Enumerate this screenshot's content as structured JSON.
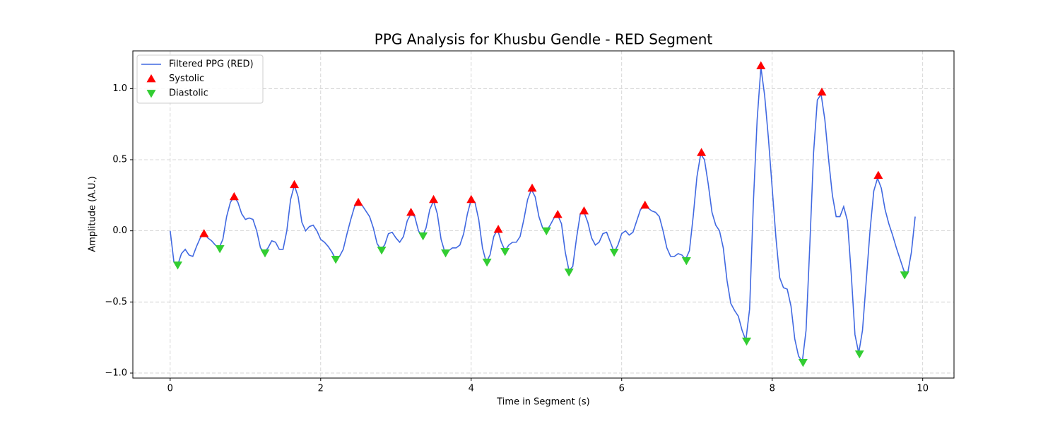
{
  "chart_data": {
    "type": "line",
    "title": "PPG Analysis for Khusbu Gendle - RED Segment",
    "xlabel": "Time in Segment (s)",
    "ylabel": "Amplitude (A.U.)",
    "xlim": [
      -0.496,
      10.416
    ],
    "ylim": [
      -1.035,
      1.265
    ],
    "xticks": [
      0,
      2,
      4,
      6,
      8,
      10
    ],
    "yticks": [
      {
        "value": -1.0,
        "label": "−1.0"
      },
      {
        "value": -0.5,
        "label": "−0.5"
      },
      {
        "value": 0.0,
        "label": "0.0"
      },
      {
        "value": 0.5,
        "label": "0.5"
      },
      {
        "value": 1.0,
        "label": "1.0"
      }
    ],
    "grid": true,
    "legend": "upper left",
    "series": [
      {
        "name": "Filtered PPG (RED)",
        "color": "#4169e1",
        "marker": "none",
        "x": [
          0,
          0.05,
          0.1,
          0.15,
          0.2,
          0.25,
          0.3,
          0.35,
          0.4,
          0.45,
          0.5,
          0.55,
          0.6,
          0.65,
          0.7,
          0.75,
          0.8,
          0.85,
          0.9,
          0.95,
          1,
          1.05,
          1.1,
          1.15,
          1.2,
          1.25,
          1.3,
          1.35,
          1.4,
          1.45,
          1.5,
          1.55,
          1.6,
          1.65,
          1.7,
          1.75,
          1.8,
          1.85,
          1.9,
          1.95,
          2,
          2.05,
          2.1,
          2.15,
          2.2,
          2.25,
          2.3,
          2.35,
          2.4,
          2.45,
          2.5,
          2.55,
          2.6,
          2.65,
          2.7,
          2.75,
          2.8,
          2.85,
          2.9,
          2.95,
          3,
          3.05,
          3.1,
          3.15,
          3.2,
          3.25,
          3.3,
          3.35,
          3.4,
          3.45,
          3.5,
          3.55,
          3.6,
          3.65,
          3.7,
          3.75,
          3.8,
          3.85,
          3.9,
          3.95,
          4,
          4.05,
          4.1,
          4.15,
          4.2,
          4.25,
          4.3,
          4.35,
          4.4,
          4.45,
          4.5,
          4.55,
          4.6,
          4.65,
          4.7,
          4.75,
          4.8,
          4.85,
          4.9,
          4.95,
          5,
          5.05,
          5.1,
          5.15,
          5.2,
          5.25,
          5.3,
          5.35,
          5.4,
          5.45,
          5.5,
          5.55,
          5.6,
          5.65,
          5.7,
          5.75,
          5.8,
          5.85,
          5.9,
          5.95,
          6,
          6.05,
          6.1,
          6.15,
          6.2,
          6.25,
          6.3,
          6.35,
          6.4,
          6.45,
          6.5,
          6.55,
          6.6,
          6.65,
          6.7,
          6.75,
          6.8,
          6.85,
          6.9,
          6.95,
          7,
          7.05,
          7.1,
          7.15,
          7.2,
          7.25,
          7.3,
          7.35,
          7.4,
          7.45,
          7.5,
          7.55,
          7.6,
          7.65,
          7.7,
          7.75,
          7.8,
          7.85,
          7.9,
          7.95,
          8,
          8.05,
          8.1,
          8.15,
          8.2,
          8.25,
          8.3,
          8.35,
          8.4,
          8.45,
          8.5,
          8.55,
          8.6,
          8.65,
          8.7,
          8.75,
          8.8,
          8.85,
          8.9,
          8.95,
          9,
          9.05,
          9.1,
          9.15,
          9.2,
          9.25,
          9.3,
          9.35,
          9.4,
          9.45,
          9.5,
          9.55,
          9.6,
          9.65,
          9.7,
          9.75,
          9.8,
          9.85,
          9.9
        ],
        "values": [
          0.0,
          -0.22,
          -0.24,
          -0.16,
          -0.13,
          -0.17,
          -0.18,
          -0.11,
          -0.05,
          -0.02,
          -0.05,
          -0.07,
          -0.1,
          -0.12,
          -0.06,
          0.1,
          0.2,
          0.24,
          0.2,
          0.12,
          0.08,
          0.09,
          0.08,
          0.0,
          -0.12,
          -0.15,
          -0.12,
          -0.07,
          -0.08,
          -0.13,
          -0.13,
          0.0,
          0.22,
          0.32,
          0.24,
          0.06,
          0.0,
          0.03,
          0.04,
          0.0,
          -0.06,
          -0.08,
          -0.11,
          -0.15,
          -0.2,
          -0.18,
          -0.13,
          -0.02,
          0.08,
          0.17,
          0.2,
          0.18,
          0.14,
          0.1,
          0.02,
          -0.09,
          -0.13,
          -0.1,
          -0.02,
          -0.01,
          -0.05,
          -0.08,
          -0.04,
          0.07,
          0.12,
          0.1,
          0.0,
          -0.04,
          0.02,
          0.15,
          0.21,
          0.12,
          -0.06,
          -0.15,
          -0.14,
          -0.12,
          -0.12,
          -0.1,
          -0.02,
          0.12,
          0.22,
          0.2,
          0.08,
          -0.12,
          -0.22,
          -0.17,
          -0.04,
          0.01,
          -0.08,
          -0.14,
          -0.1,
          -0.08,
          -0.08,
          -0.04,
          0.08,
          0.22,
          0.29,
          0.24,
          0.1,
          0.02,
          0.0,
          0.04,
          0.09,
          0.11,
          0.05,
          -0.15,
          -0.28,
          -0.25,
          -0.05,
          0.12,
          0.13,
          0.06,
          -0.05,
          -0.1,
          -0.08,
          -0.02,
          -0.01,
          -0.08,
          -0.15,
          -0.1,
          -0.02,
          0.0,
          -0.03,
          -0.01,
          0.07,
          0.15,
          0.17,
          0.16,
          0.14,
          0.13,
          0.1,
          0.0,
          -0.12,
          -0.18,
          -0.18,
          -0.16,
          -0.17,
          -0.2,
          -0.14,
          0.1,
          0.38,
          0.54,
          0.5,
          0.33,
          0.13,
          0.04,
          0.0,
          -0.12,
          -0.35,
          -0.51,
          -0.56,
          -0.6,
          -0.7,
          -0.77,
          -0.55,
          0.2,
          0.78,
          1.15,
          0.95,
          0.65,
          0.3,
          -0.05,
          -0.33,
          -0.4,
          -0.41,
          -0.53,
          -0.76,
          -0.88,
          -0.92,
          -0.7,
          -0.1,
          0.55,
          0.92,
          0.96,
          0.78,
          0.5,
          0.25,
          0.1,
          0.1,
          0.17,
          0.07,
          -0.3,
          -0.73,
          -0.86,
          -0.7,
          -0.35,
          0.0,
          0.28,
          0.37,
          0.3,
          0.15,
          0.05,
          -0.03,
          -0.12,
          -0.2,
          -0.28,
          -0.3,
          -0.15,
          0.1
        ]
      },
      {
        "name": "Systolic",
        "color": "#ff0000",
        "marker": "triangle-up",
        "x": [
          0.45,
          0.85,
          1.65,
          2.5,
          3.2,
          3.5,
          4.0,
          4.36,
          4.81,
          5.15,
          5.5,
          6.31,
          7.06,
          7.85,
          8.66,
          9.41
        ],
        "values": [
          -0.02,
          0.24,
          0.325,
          0.2,
          0.13,
          0.22,
          0.22,
          0.01,
          0.3,
          0.115,
          0.14,
          0.18,
          0.55,
          1.16,
          0.975,
          0.39
        ]
      },
      {
        "name": "Diastolic",
        "color": "#32cd32",
        "marker": "triangle-down",
        "x": [
          0.1,
          0.66,
          1.26,
          2.2,
          2.81,
          3.36,
          3.66,
          4.21,
          4.45,
          5.0,
          5.3,
          5.9,
          6.86,
          7.66,
          8.41,
          9.16,
          9.76
        ],
        "values": [
          -0.24,
          -0.125,
          -0.155,
          -0.2,
          -0.135,
          -0.035,
          -0.155,
          -0.22,
          -0.145,
          0.0,
          -0.29,
          -0.15,
          -0.21,
          -0.775,
          -0.925,
          -0.865,
          -0.31
        ]
      }
    ]
  }
}
